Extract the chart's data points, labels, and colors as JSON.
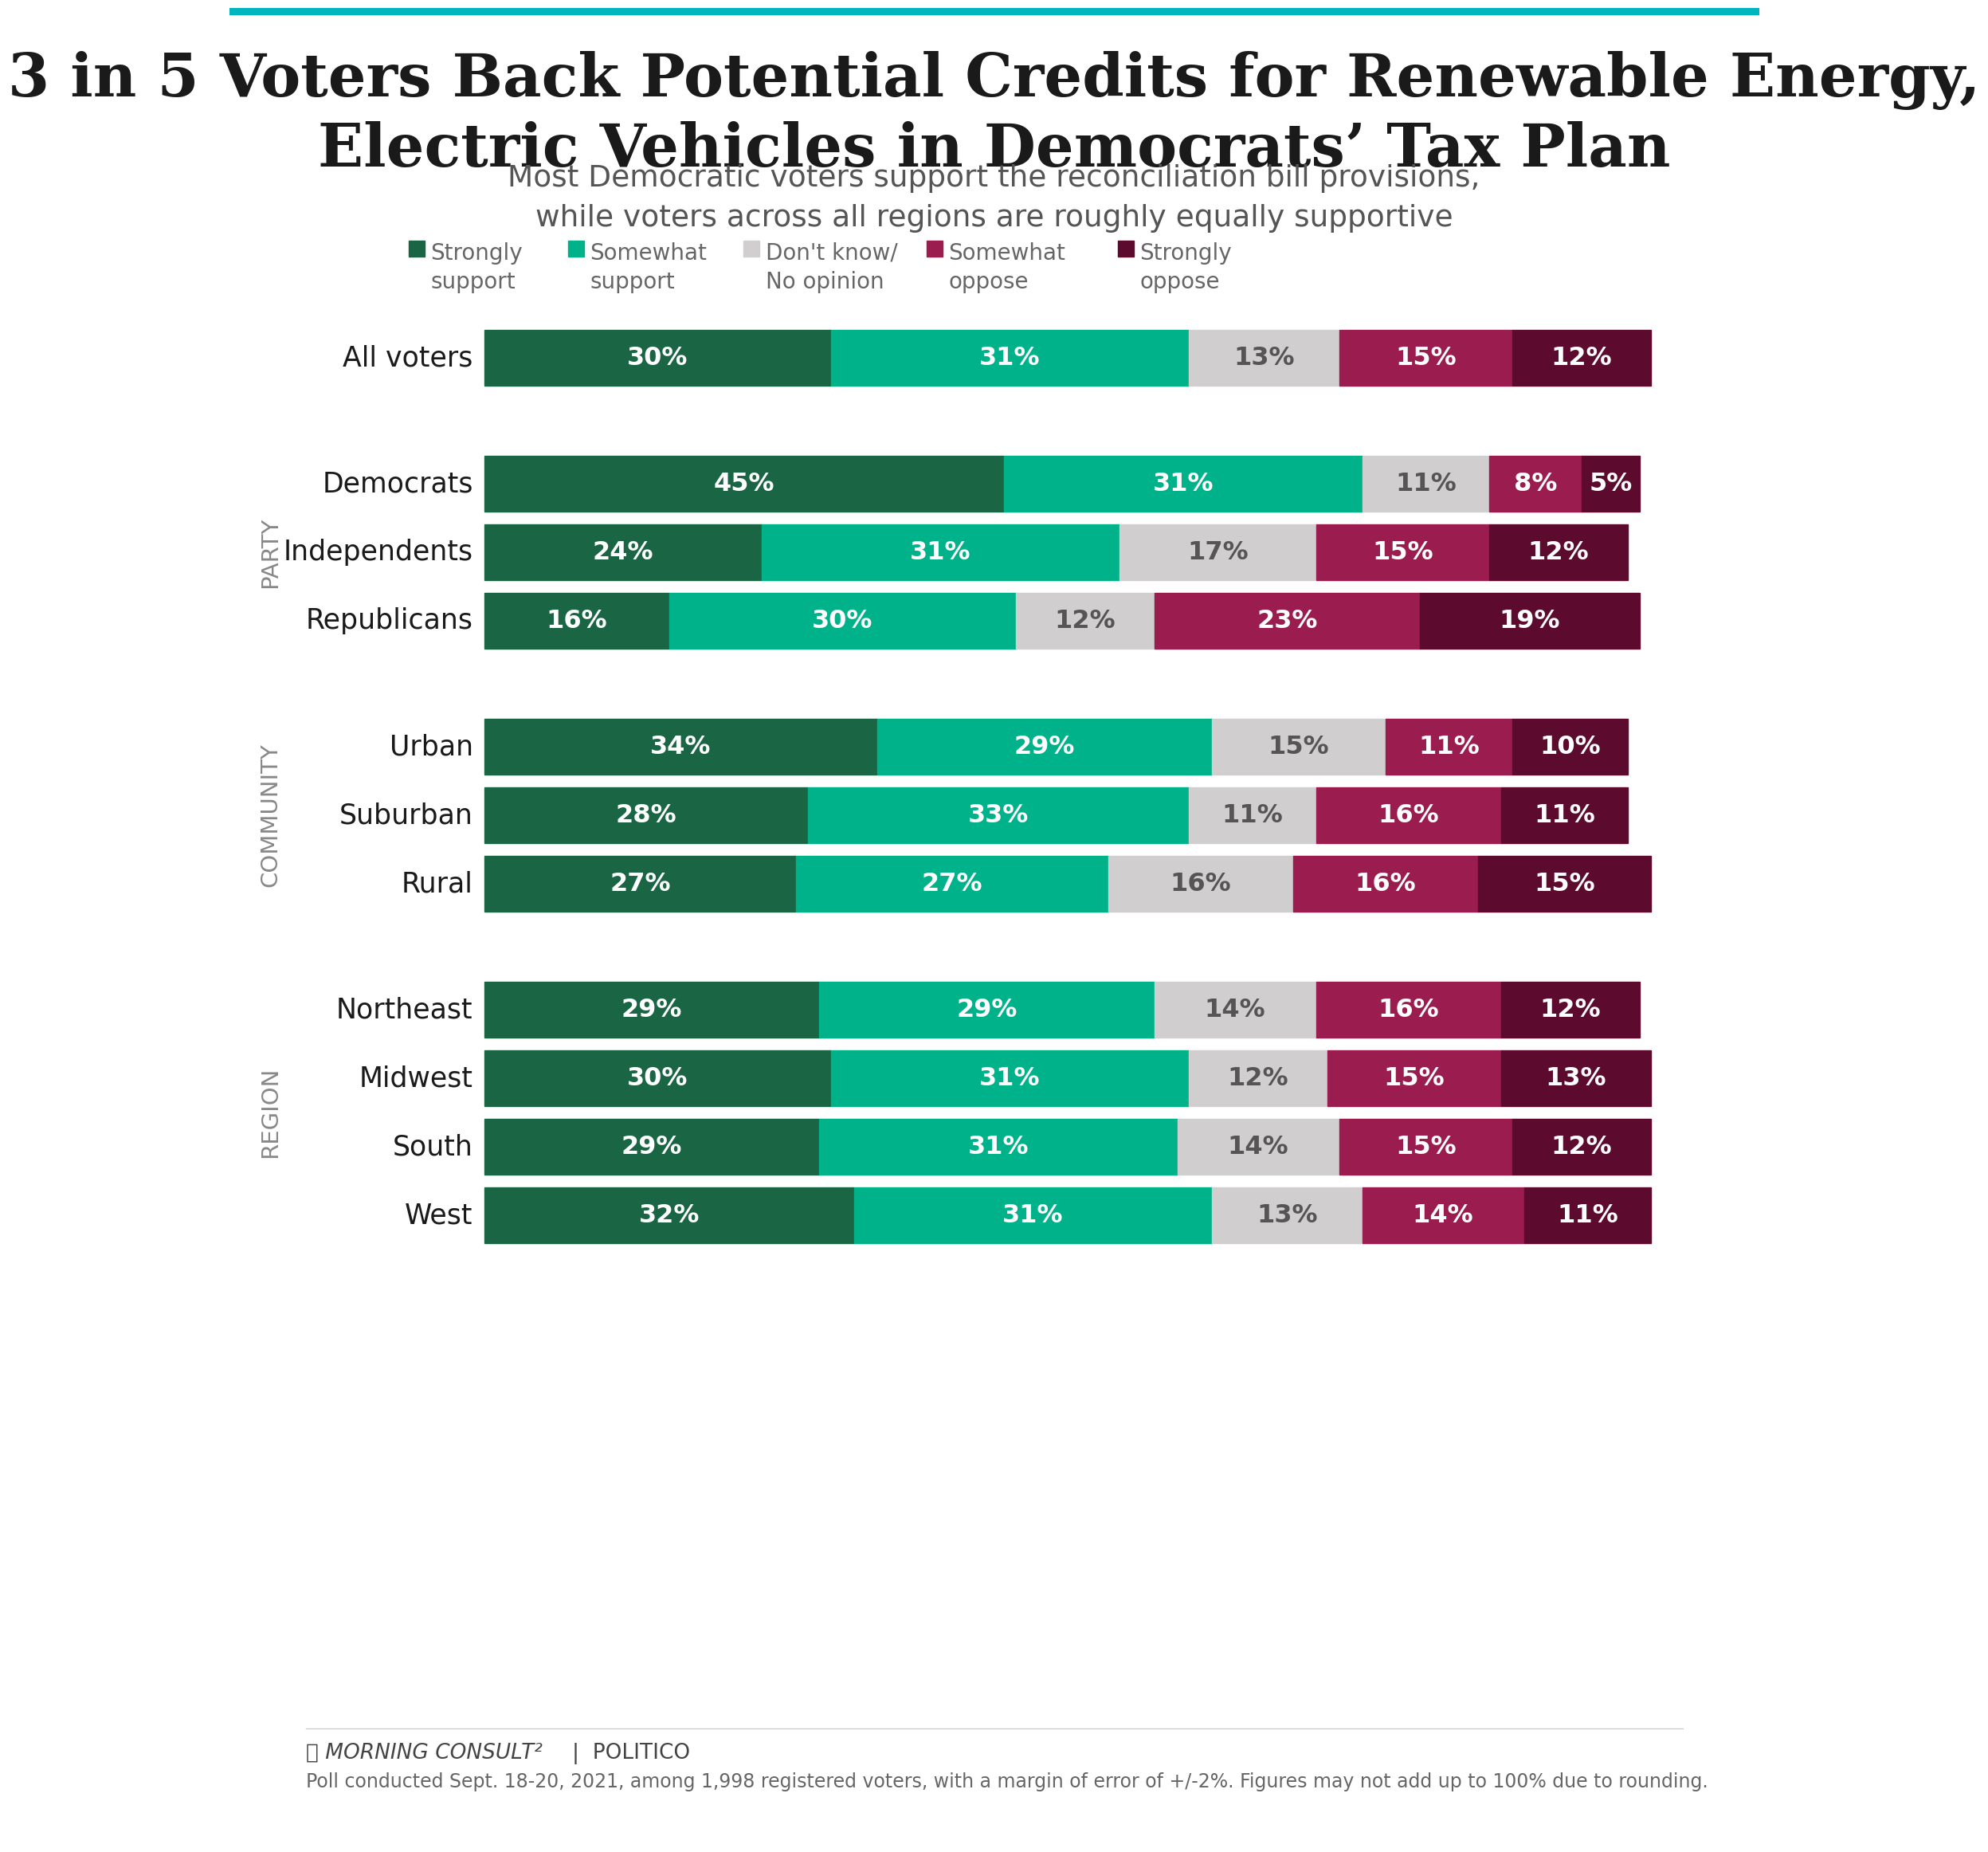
{
  "title": "3 in 5 Voters Back Potential Credits for Renewable Energy,\nElectric Vehicles in Democrats’ Tax Plan",
  "subtitle": "Most Democratic voters support the reconciliation bill provisions,\nwhile voters across all regions are roughly equally supportive",
  "colors": {
    "strongly_support": "#1a6644",
    "somewhat_support": "#00b28a",
    "dont_know": "#d0cece",
    "somewhat_oppose": "#9b1c4e",
    "strongly_oppose": "#5c0a2e"
  },
  "legend_labels": [
    "Strongly\nsupport",
    "Somewhat\nsupport",
    "Don't know/\nNo opinion",
    "Somewhat\noppose",
    "Strongly\noppose"
  ],
  "sections": [
    {
      "label": null,
      "rows": [
        {
          "name": "All voters",
          "values": [
            30,
            31,
            13,
            15,
            12
          ]
        }
      ]
    },
    {
      "label": "PARTY",
      "rows": [
        {
          "name": "Democrats",
          "values": [
            45,
            31,
            11,
            8,
            5
          ]
        },
        {
          "name": "Independents",
          "values": [
            24,
            31,
            17,
            15,
            12
          ]
        },
        {
          "name": "Republicans",
          "values": [
            16,
            30,
            12,
            23,
            19
          ]
        }
      ]
    },
    {
      "label": "COMMUNITY",
      "rows": [
        {
          "name": "Urban",
          "values": [
            34,
            29,
            15,
            11,
            10
          ]
        },
        {
          "name": "Suburban",
          "values": [
            28,
            33,
            11,
            16,
            11
          ]
        },
        {
          "name": "Rural",
          "values": [
            27,
            27,
            16,
            16,
            15
          ]
        }
      ]
    },
    {
      "label": "REGION",
      "rows": [
        {
          "name": "Northeast",
          "values": [
            29,
            29,
            14,
            16,
            12
          ]
        },
        {
          "name": "Midwest",
          "values": [
            30,
            31,
            12,
            15,
            13
          ]
        },
        {
          "name": "South",
          "values": [
            29,
            31,
            14,
            15,
            12
          ]
        },
        {
          "name": "West",
          "values": [
            32,
            31,
            13,
            14,
            11
          ]
        }
      ]
    }
  ],
  "footnote": "Poll conducted Sept. 18-20, 2021, among 1,998 registered voters, with a margin of error of +/-2%. Figures may not add up to 100% due to rounding.",
  "background_color": "#ffffff",
  "top_bar_color": "#00b5bd",
  "top_bar_height": 8
}
